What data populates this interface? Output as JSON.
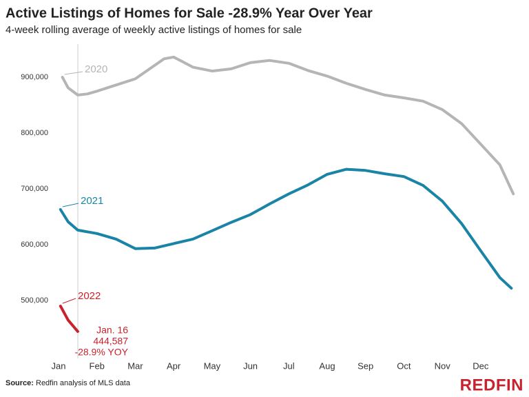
{
  "chart_data": {
    "type": "line",
    "title": "Active Listings of Homes for Sale -28.9% Year Over Year",
    "subtitle": "4-week rolling average of weekly active listings of homes for sale",
    "source_label": "Source:",
    "source": "Redfin analysis of MLS data",
    "brand": "REDFIN",
    "annotations": [
      "Jan. 16",
      "444,587",
      "-28.9% YOY"
    ],
    "xlim": [
      1,
      12.9
    ],
    "xticks": [
      {
        "value": 1,
        "label": "Jan"
      },
      {
        "value": 2,
        "label": "Feb"
      },
      {
        "value": 3,
        "label": "Mar"
      },
      {
        "value": 4,
        "label": "Apr"
      },
      {
        "value": 5,
        "label": "May"
      },
      {
        "value": 6,
        "label": "Jun"
      },
      {
        "value": 7,
        "label": "Jul"
      },
      {
        "value": 8,
        "label": "Aug"
      },
      {
        "value": 9,
        "label": "Sep"
      },
      {
        "value": 10,
        "label": "Oct"
      },
      {
        "value": 11,
        "label": "Nov"
      },
      {
        "value": 12,
        "label": "Dec"
      }
    ],
    "ylim": [
      400000,
      960000
    ],
    "yticks": [
      {
        "value": 500000,
        "label": "500,000"
      },
      {
        "value": 600000,
        "label": "600,000"
      },
      {
        "value": 700000,
        "label": "700,000"
      },
      {
        "value": 800000,
        "label": "800,000"
      },
      {
        "value": 900000,
        "label": "900,000"
      }
    ],
    "grid": false,
    "series": [
      {
        "name": "2020",
        "color": "#b5b5b5",
        "x": [
          1.1,
          1.25,
          1.5,
          1.75,
          2.0,
          2.5,
          3.0,
          3.5,
          3.75,
          4.0,
          4.5,
          5.0,
          5.5,
          6.0,
          6.5,
          7.0,
          7.5,
          8.0,
          8.5,
          9.0,
          9.5,
          10.0,
          10.5,
          11.0,
          11.5,
          12.0,
          12.5,
          12.85
        ],
        "values": [
          900000,
          881000,
          868000,
          870000,
          875000,
          886000,
          897000,
          921000,
          933000,
          936000,
          918000,
          911000,
          915000,
          926000,
          930000,
          925000,
          912000,
          902000,
          889000,
          878000,
          868000,
          863000,
          857000,
          842000,
          817000,
          780000,
          743000,
          691000
        ]
      },
      {
        "name": "2021",
        "color": "#1a84a6",
        "x": [
          1.05,
          1.25,
          1.5,
          2.0,
          2.5,
          3.0,
          3.5,
          4.0,
          4.5,
          5.0,
          5.5,
          6.0,
          6.5,
          7.0,
          7.5,
          8.0,
          8.5,
          9.0,
          9.5,
          10.0,
          10.5,
          11.0,
          11.5,
          12.0,
          12.5,
          12.8
        ],
        "values": [
          663000,
          641000,
          626000,
          620000,
          610000,
          593000,
          594000,
          602000,
          610000,
          625000,
          640000,
          654000,
          673000,
          691000,
          707000,
          726000,
          735000,
          733000,
          727000,
          722000,
          706000,
          678000,
          638000,
          589000,
          541000,
          522000
        ]
      },
      {
        "name": "2022",
        "color": "#c8232c",
        "x": [
          1.05,
          1.25,
          1.5
        ],
        "values": [
          490000,
          465000,
          444587
        ]
      }
    ]
  }
}
